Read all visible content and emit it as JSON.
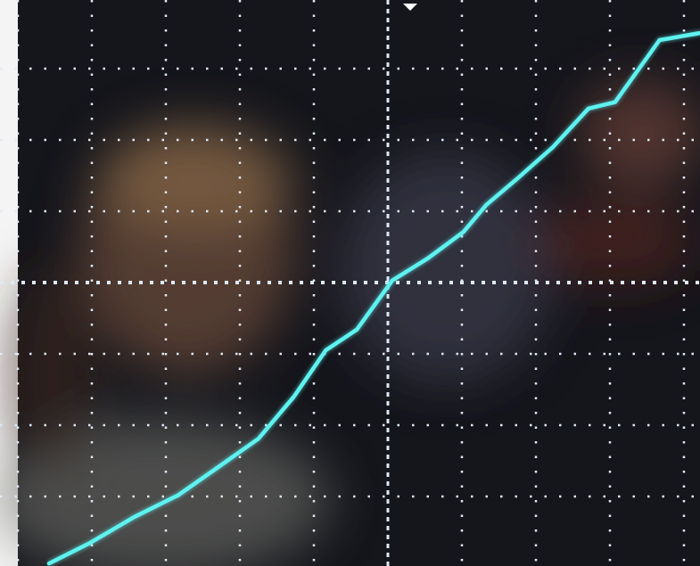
{
  "chart_data": {
    "type": "line",
    "x": [
      0.42,
      0.96,
      1.57,
      2.17,
      2.65,
      3.25,
      3.73,
      4.16,
      4.58,
      5.06,
      5.54,
      6.02,
      6.33,
      6.75,
      7.23,
      7.71,
      8.07,
      8.67,
      9.22
    ],
    "series": [
      {
        "color": "#5ef2f0",
        "values": [
          -3.94,
          -3.66,
          -3.29,
          -2.98,
          -2.63,
          -2.19,
          -1.6,
          -0.95,
          -0.66,
          0.03,
          0.34,
          0.71,
          1.09,
          1.46,
          1.9,
          2.44,
          2.53,
          3.4,
          3.5
        ]
      }
    ],
    "xlim": [
      0,
      10
    ],
    "ylim": [
      -4,
      4
    ],
    "xticks": [
      0,
      1,
      2,
      3,
      4,
      5,
      6,
      7,
      8,
      9,
      10
    ],
    "yticks": [
      -4,
      -3,
      -2,
      -1,
      0,
      1,
      2,
      3,
      4
    ],
    "grid": true,
    "grid_color": "#dfe9f5"
  }
}
